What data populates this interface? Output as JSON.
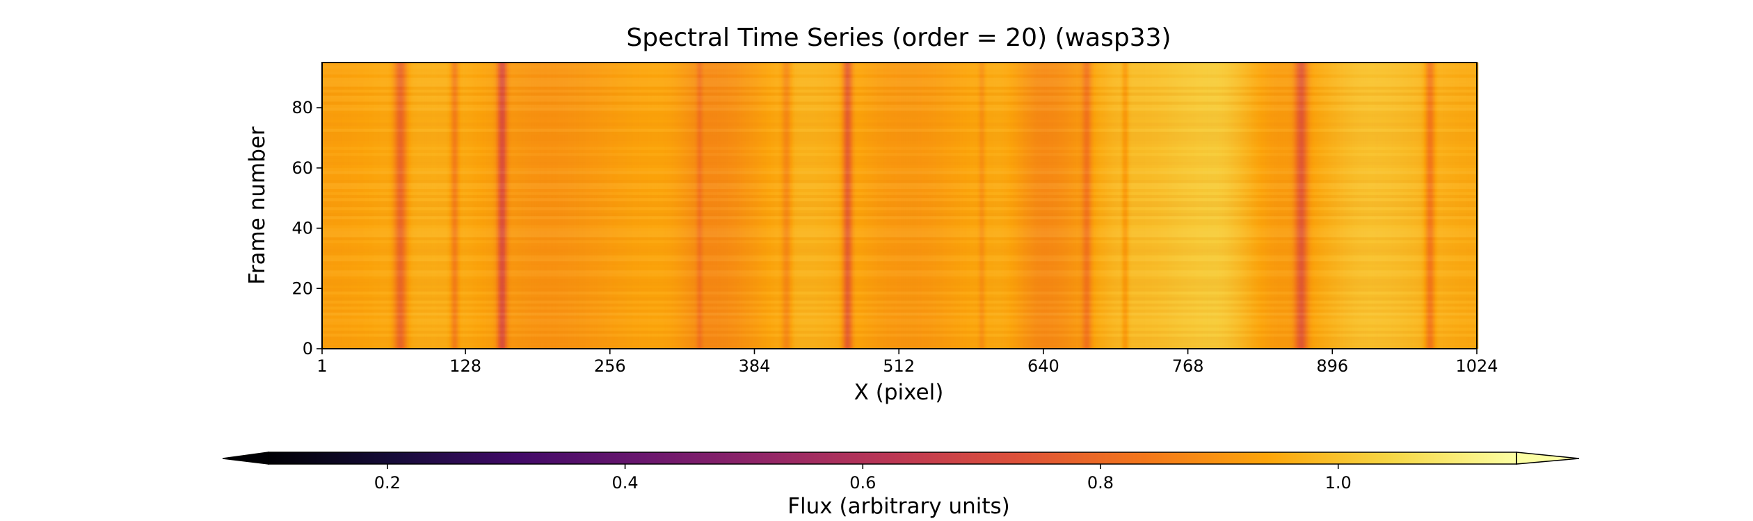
{
  "chart_data": {
    "type": "heatmap",
    "title": "Spectral Time Series (order = 20) (wasp33)",
    "xlabel": "X (pixel)",
    "ylabel": "Frame number",
    "xlim": [
      1,
      1024
    ],
    "ylim": [
      0,
      95
    ],
    "xticks": [
      1,
      128,
      256,
      384,
      512,
      640,
      768,
      896,
      1024
    ],
    "yticks": [
      0,
      20,
      40,
      60,
      80
    ],
    "colormap": "inferno",
    "colorbar": {
      "label": "Flux (arbitrary units)",
      "orientation": "horizontal",
      "placement": "bottom",
      "extend": "both",
      "range": [
        0.1,
        1.15
      ],
      "ticks": [
        0.2,
        0.4,
        0.6,
        0.8,
        1.0
      ]
    },
    "baseline_flux": 0.93,
    "absorption_lines": [
      {
        "x": 70,
        "depth": 0.16,
        "width": 4
      },
      {
        "x": 118,
        "depth": 0.1,
        "width": 2.5
      },
      {
        "x": 160,
        "depth": 0.2,
        "width": 3
      },
      {
        "x": 335,
        "depth": 0.06,
        "width": 2
      },
      {
        "x": 412,
        "depth": 0.08,
        "width": 3
      },
      {
        "x": 466,
        "depth": 0.18,
        "width": 3
      },
      {
        "x": 585,
        "depth": 0.05,
        "width": 2
      },
      {
        "x": 678,
        "depth": 0.1,
        "width": 3
      },
      {
        "x": 712,
        "depth": 0.07,
        "width": 2
      },
      {
        "x": 868,
        "depth": 0.18,
        "width": 4
      },
      {
        "x": 982,
        "depth": 0.13,
        "width": 3
      }
    ],
    "continuum_variation": [
      {
        "x": 1,
        "flux": 0.93
      },
      {
        "x": 100,
        "flux": 0.96
      },
      {
        "x": 200,
        "flux": 0.9
      },
      {
        "x": 300,
        "flux": 0.94
      },
      {
        "x": 345,
        "flux": 0.88
      },
      {
        "x": 430,
        "flux": 0.97
      },
      {
        "x": 520,
        "flux": 0.91
      },
      {
        "x": 600,
        "flux": 0.95
      },
      {
        "x": 640,
        "flux": 0.88
      },
      {
        "x": 720,
        "flux": 0.99
      },
      {
        "x": 790,
        "flux": 1.02
      },
      {
        "x": 850,
        "flux": 0.92
      },
      {
        "x": 930,
        "flux": 1.0
      },
      {
        "x": 1024,
        "flux": 0.95
      }
    ]
  }
}
